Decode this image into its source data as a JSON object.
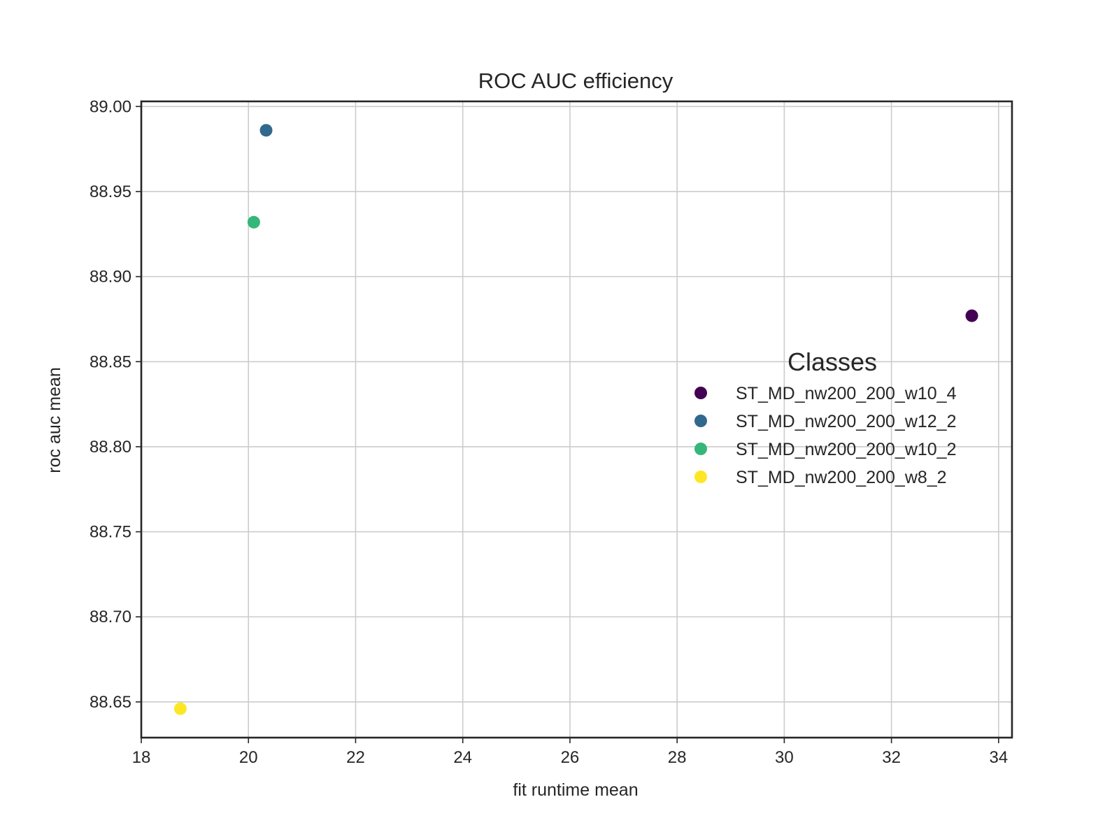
{
  "chart_data": {
    "type": "scatter",
    "title": "ROC AUC efficiency",
    "xlabel": "fit runtime mean",
    "ylabel": "roc auc mean",
    "xlim": [
      18.0,
      34.25
    ],
    "ylim": [
      88.629,
      89.003
    ],
    "xticks": [
      18,
      20,
      22,
      24,
      26,
      28,
      30,
      32,
      34
    ],
    "yticks": [
      88.65,
      88.7,
      88.75,
      88.8,
      88.85,
      88.9,
      88.95,
      89.0
    ],
    "ytick_labels": [
      "88.65",
      "88.70",
      "88.75",
      "88.80",
      "88.85",
      "88.90",
      "88.95",
      "89.00"
    ],
    "grid": true,
    "legend": {
      "title": "Classes",
      "placement": "center-right"
    },
    "series": [
      {
        "name": "ST_MD_nw200_200_w10_4",
        "color": "#440154",
        "x": [
          33.5
        ],
        "y": [
          88.877
        ]
      },
      {
        "name": "ST_MD_nw200_200_w12_2",
        "color": "#31688e",
        "x": [
          20.33
        ],
        "y": [
          88.986
        ]
      },
      {
        "name": "ST_MD_nw200_200_w10_2",
        "color": "#35b779",
        "x": [
          20.1
        ],
        "y": [
          88.932
        ]
      },
      {
        "name": "ST_MD_nw200_200_w8_2",
        "color": "#fde725",
        "x": [
          18.73
        ],
        "y": [
          88.646
        ]
      }
    ]
  }
}
